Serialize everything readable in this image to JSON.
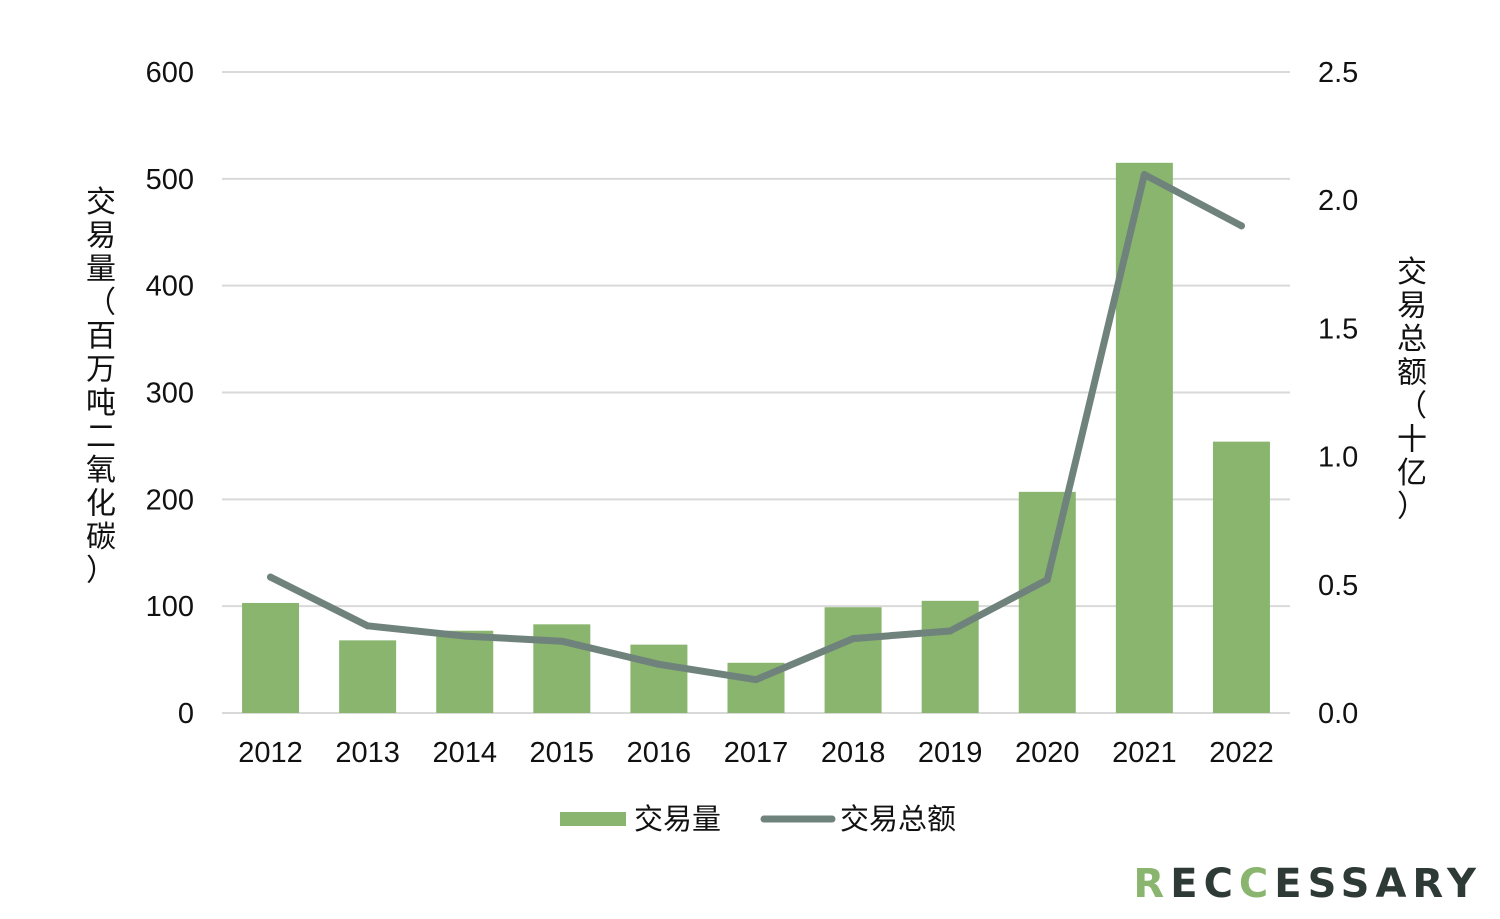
{
  "chart_data": {
    "type": "bar",
    "categories": [
      "2012",
      "2013",
      "2014",
      "2015",
      "2016",
      "2017",
      "2018",
      "2019",
      "2020",
      "2021",
      "2022"
    ],
    "series": [
      {
        "name": "交易量",
        "type": "bar",
        "axis": "left",
        "color": "#8ab56e",
        "values": [
          103,
          68,
          77,
          83,
          64,
          47,
          99,
          105,
          207,
          515,
          254
        ]
      },
      {
        "name": "交易总额",
        "type": "line",
        "axis": "right",
        "color": "#6f837c",
        "values": [
          0.53,
          0.34,
          0.3,
          0.28,
          0.19,
          0.13,
          0.29,
          0.32,
          0.52,
          2.1,
          1.9
        ]
      }
    ],
    "ylabel": "交易量（百万吨二氧化碳）",
    "ylim": [
      0,
      600
    ],
    "yticks": [
      "0",
      "100",
      "200",
      "300",
      "400",
      "500",
      "600"
    ],
    "y2label": "交易总额（十亿）",
    "y2lim": [
      0,
      2.5
    ],
    "y2ticks": [
      "0.0",
      "0.5",
      "1.0",
      "1.5",
      "2.0",
      "2.5"
    ],
    "grid": true,
    "legend_position": "bottom"
  },
  "brand": {
    "text": "RECCESSARY",
    "color": "#2e3a36",
    "accent": "#8ab56e"
  }
}
